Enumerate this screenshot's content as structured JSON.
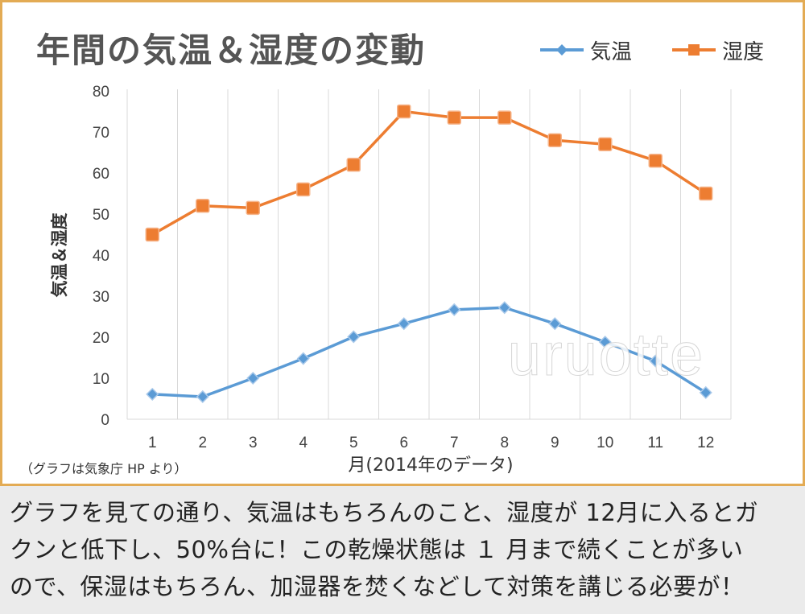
{
  "chart_data": {
    "type": "line",
    "title": "年間の気温＆湿度の変動",
    "xlabel": "月(2014年のデータ)",
    "ylabel": "気温＆湿度",
    "categories": [
      "1",
      "2",
      "3",
      "4",
      "5",
      "6",
      "7",
      "8",
      "9",
      "10",
      "11",
      "12"
    ],
    "ylim": [
      0,
      80
    ],
    "yticks": [
      0,
      10,
      20,
      30,
      40,
      50,
      60,
      70,
      80
    ],
    "grid": "vertical",
    "legend_position": "top-right",
    "series": [
      {
        "name": "気温",
        "color": "#5b9bd5",
        "marker": "diamond",
        "values": [
          6.1,
          5.5,
          10.0,
          14.8,
          20.1,
          23.3,
          26.7,
          27.2,
          23.3,
          18.8,
          14.2,
          6.5
        ]
      },
      {
        "name": "湿度",
        "color": "#ed7d31",
        "marker": "square",
        "values": [
          45,
          52,
          51.5,
          56,
          62,
          75,
          73.5,
          73.5,
          68,
          67,
          63,
          55
        ]
      }
    ]
  },
  "watermark": "uruotte",
  "source_note": "（グラフは気象庁 HP より）",
  "caption_lines": [
    "グラフを見ての通り、気温はもちろんのこと、湿度が 12月に入るとガ",
    "クンと低下し、50%台に！この乾燥状態は １ 月まで続くことが多い",
    "ので、保湿はもちろん、加湿器を焚くなどして対策を講じる必要が！"
  ]
}
